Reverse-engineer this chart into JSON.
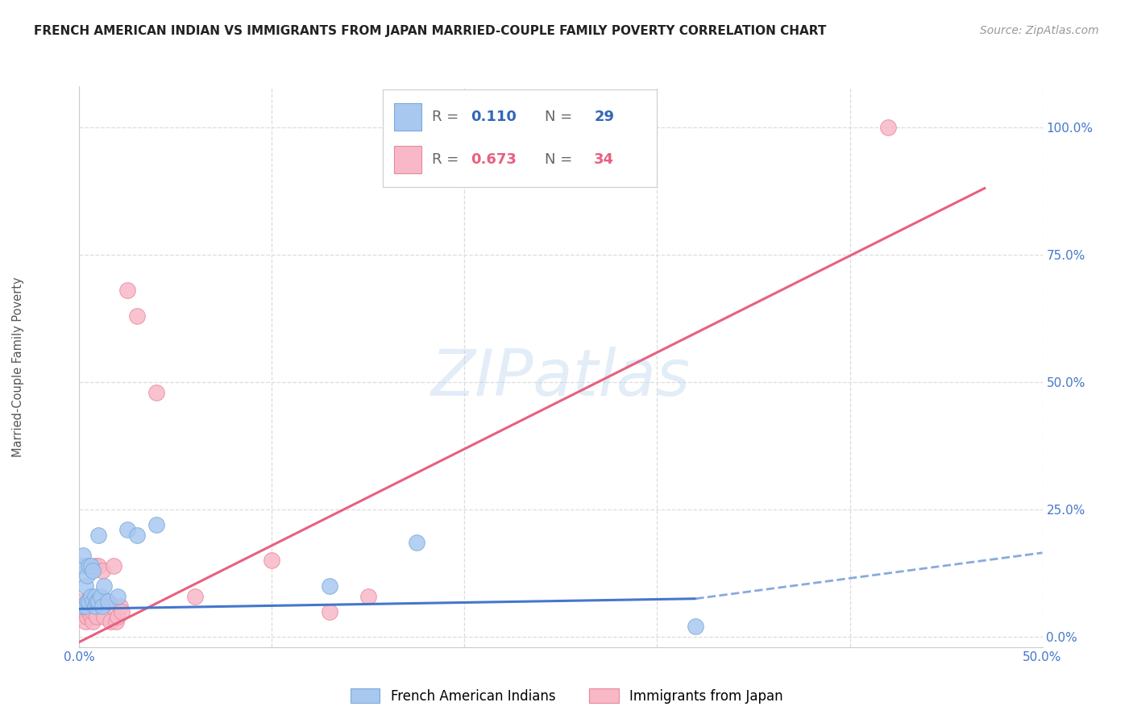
{
  "title": "FRENCH AMERICAN INDIAN VS IMMIGRANTS FROM JAPAN MARRIED-COUPLE FAMILY POVERTY CORRELATION CHART",
  "source": "Source: ZipAtlas.com",
  "ylabel_label": "Married-Couple Family Poverty",
  "xlim": [
    0.0,
    0.5
  ],
  "ylim": [
    -0.02,
    1.08
  ],
  "xticks": [
    0.0,
    0.1,
    0.2,
    0.3,
    0.4,
    0.5
  ],
  "xticklabels": [
    "0.0%",
    "",
    "",
    "",
    "",
    "50.0%"
  ],
  "yticks": [
    0.0,
    0.25,
    0.5,
    0.75,
    1.0
  ],
  "yticklabels": [
    "0.0%",
    "25.0%",
    "50.0%",
    "75.0%",
    "100.0%"
  ],
  "blue_color": "#A8C8F0",
  "blue_edge": "#7AAAD8",
  "pink_color": "#F8B8C8",
  "pink_edge": "#E88898",
  "trend_blue_solid": "#4477CC",
  "trend_blue_dashed": "#88AADD",
  "trend_pink": "#E86080",
  "R_blue": 0.11,
  "N_blue": 29,
  "R_pink": 0.673,
  "N_pink": 34,
  "legend_label_blue": "French American Indians",
  "legend_label_pink": "Immigrants from Japan",
  "watermark": "ZIPatlas",
  "blue_x": [
    0.001,
    0.002,
    0.002,
    0.003,
    0.003,
    0.004,
    0.004,
    0.005,
    0.005,
    0.006,
    0.006,
    0.007,
    0.007,
    0.008,
    0.008,
    0.009,
    0.01,
    0.01,
    0.011,
    0.012,
    0.013,
    0.015,
    0.02,
    0.025,
    0.03,
    0.04,
    0.13,
    0.175,
    0.32
  ],
  "blue_y": [
    0.06,
    0.14,
    0.16,
    0.06,
    0.1,
    0.07,
    0.12,
    0.07,
    0.14,
    0.08,
    0.14,
    0.07,
    0.13,
    0.06,
    0.08,
    0.07,
    0.07,
    0.2,
    0.08,
    0.06,
    0.1,
    0.07,
    0.08,
    0.21,
    0.2,
    0.22,
    0.1,
    0.185,
    0.02
  ],
  "pink_x": [
    0.001,
    0.002,
    0.002,
    0.003,
    0.003,
    0.004,
    0.005,
    0.005,
    0.006,
    0.007,
    0.007,
    0.008,
    0.008,
    0.009,
    0.01,
    0.011,
    0.012,
    0.013,
    0.015,
    0.016,
    0.017,
    0.018,
    0.019,
    0.02,
    0.021,
    0.022,
    0.025,
    0.03,
    0.04,
    0.06,
    0.1,
    0.13,
    0.15,
    0.42
  ],
  "pink_y": [
    0.04,
    0.05,
    0.07,
    0.03,
    0.06,
    0.04,
    0.05,
    0.07,
    0.04,
    0.03,
    0.05,
    0.06,
    0.14,
    0.04,
    0.14,
    0.06,
    0.13,
    0.04,
    0.07,
    0.03,
    0.06,
    0.14,
    0.03,
    0.04,
    0.06,
    0.05,
    0.68,
    0.63,
    0.48,
    0.08,
    0.15,
    0.05,
    0.08,
    1.0
  ],
  "blue_trend_x0": 0.0,
  "blue_trend_y0": 0.055,
  "blue_trend_x1": 0.32,
  "blue_trend_y1": 0.075,
  "blue_trend_xdash": 0.5,
  "blue_trend_ydash": 0.165,
  "pink_trend_x0": 0.0,
  "pink_trend_y0": -0.01,
  "pink_trend_x1": 0.47,
  "pink_trend_y1": 0.88
}
